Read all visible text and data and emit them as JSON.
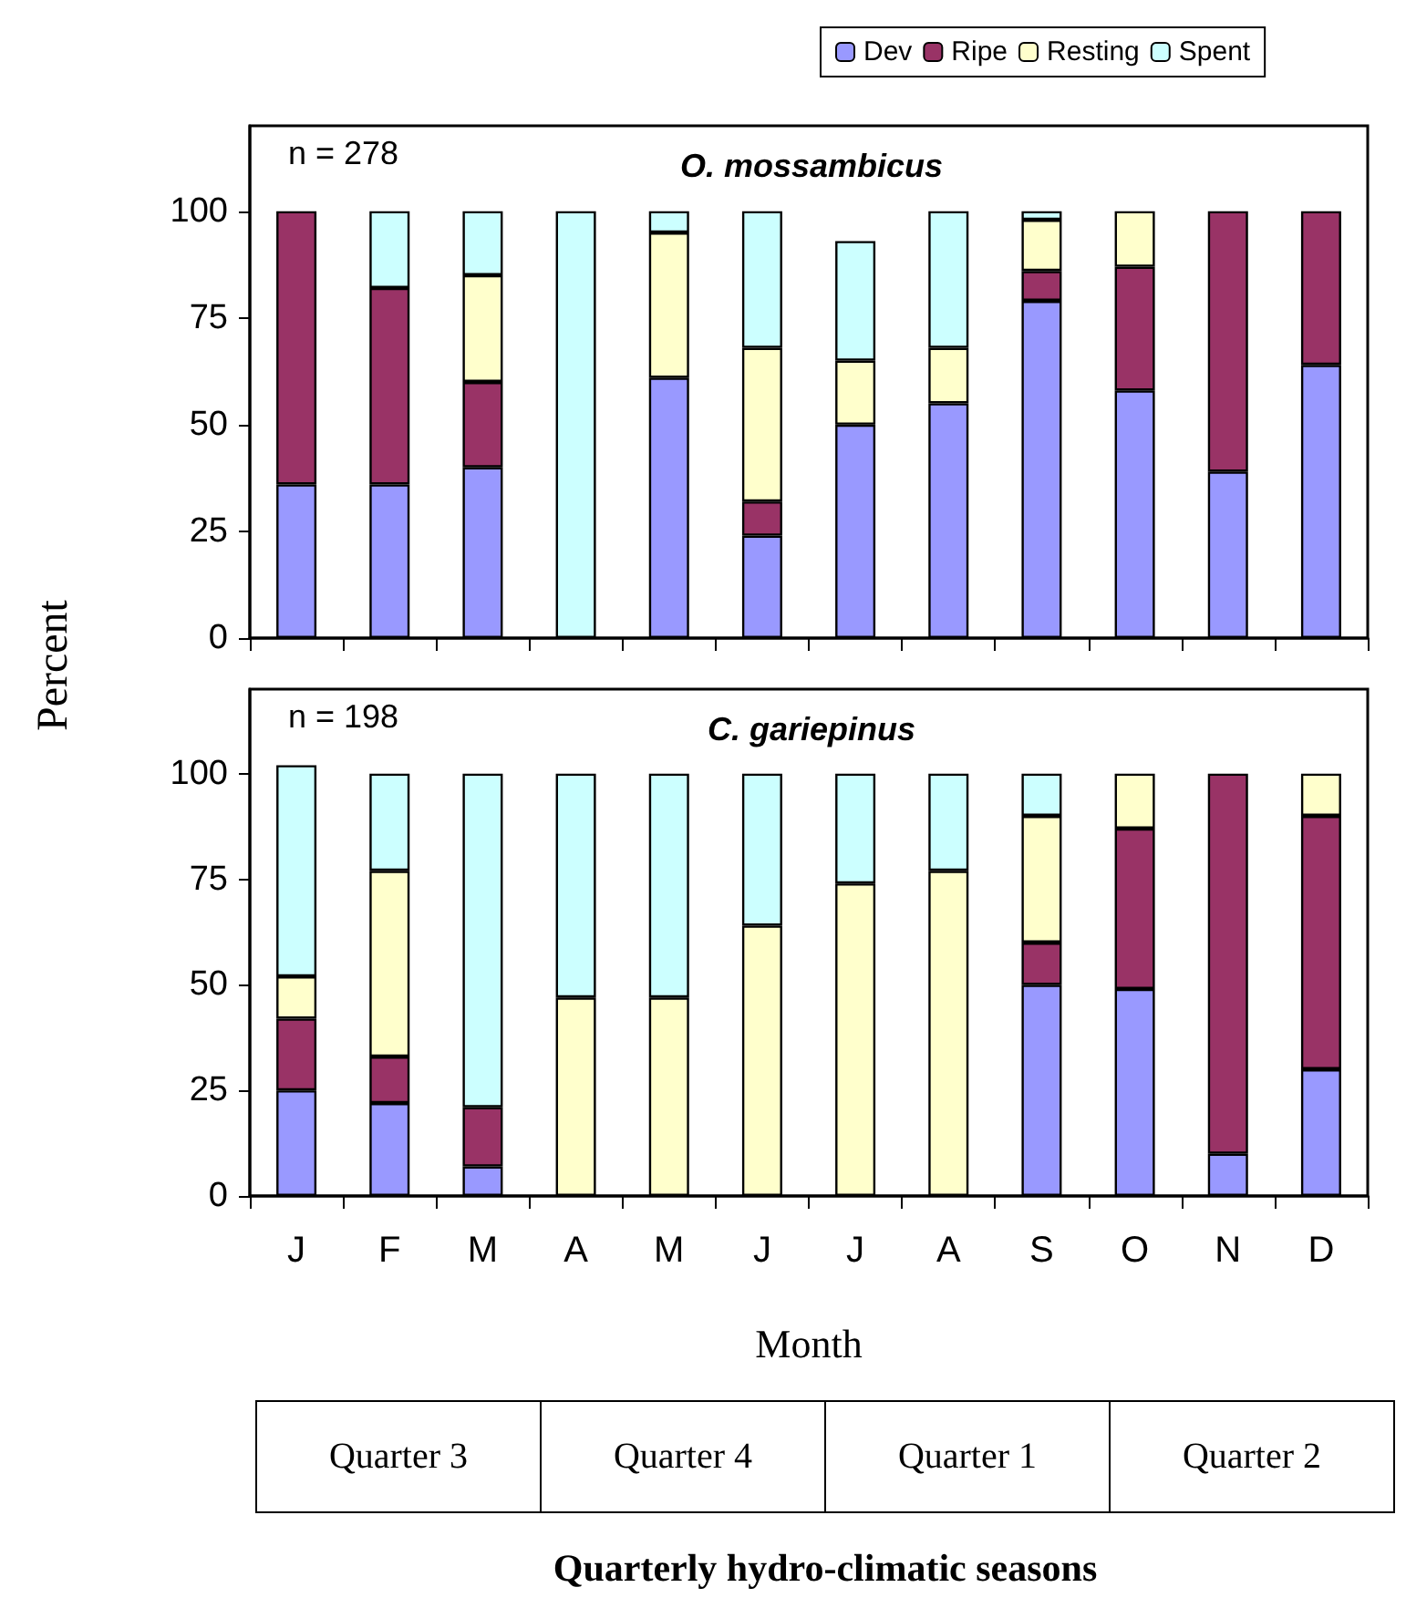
{
  "chart_data": [
    {
      "type": "bar",
      "stacked": true,
      "title": "O. mossambicus",
      "ylabel": "Percent",
      "annotations": [
        "n = 278"
      ],
      "categories": [
        null,
        null,
        null,
        null,
        null,
        null,
        null,
        null,
        null,
        null,
        null,
        null
      ],
      "tick_labels": "y",
      "legend": "top",
      "grid": false,
      "ylim": [
        0,
        120
      ],
      "yticks": [
        0,
        25,
        50,
        75,
        100
      ],
      "series": [
        {
          "name": "Dev",
          "color": "#9999ff",
          "values": [
            36,
            36,
            40,
            0,
            61,
            24,
            50,
            55,
            79,
            58,
            39,
            64
          ]
        },
        {
          "name": "Ripe",
          "color": "#993366",
          "values": [
            64,
            46,
            20,
            0,
            0,
            8,
            0,
            0,
            7,
            29,
            61,
            36
          ]
        },
        {
          "name": "Resting",
          "color": "#ffffcc",
          "values": [
            0,
            0,
            25,
            0,
            34,
            36,
            15,
            13,
            12,
            13,
            0,
            0
          ]
        },
        {
          "name": "Spent",
          "color": "#ccffff",
          "values": [
            0,
            18,
            15,
            100,
            5,
            32,
            28,
            32,
            2,
            0,
            0,
            0
          ]
        }
      ]
    },
    {
      "type": "bar",
      "stacked": true,
      "title": "C. gariepinus",
      "xlabel": "Month",
      "annotations": [
        "n = 198",
        "Quarter 3",
        "Quarter 4",
        "Quarter 1",
        "Quarter 2",
        "Quarterly hydro-climatic seasons"
      ],
      "categories": [
        "J",
        "F",
        "M",
        "A",
        "M",
        "J",
        "J",
        "A",
        "S",
        "O",
        "N",
        "D"
      ],
      "legend": false,
      "grid": false,
      "ylim": [
        0,
        120
      ],
      "yticks": [
        0,
        25,
        50,
        75,
        100
      ],
      "series": [
        {
          "color": "#9999ff",
          "values": [
            25,
            22,
            7,
            0,
            0,
            0,
            0,
            0,
            50,
            49,
            10,
            30
          ]
        },
        {
          "color": "#993366",
          "values": [
            17,
            11,
            14,
            0,
            0,
            0,
            0,
            0,
            10,
            38,
            90,
            60
          ]
        },
        {
          "color": "#ffffcc",
          "values": [
            10,
            44,
            0,
            47,
            47,
            64,
            74,
            77,
            30,
            13,
            0,
            10
          ]
        },
        {
          "color": "#ccffff",
          "values": [
            50,
            23,
            79,
            53,
            53,
            36,
            26,
            23,
            10,
            0,
            0,
            0
          ]
        }
      ]
    }
  ]
}
